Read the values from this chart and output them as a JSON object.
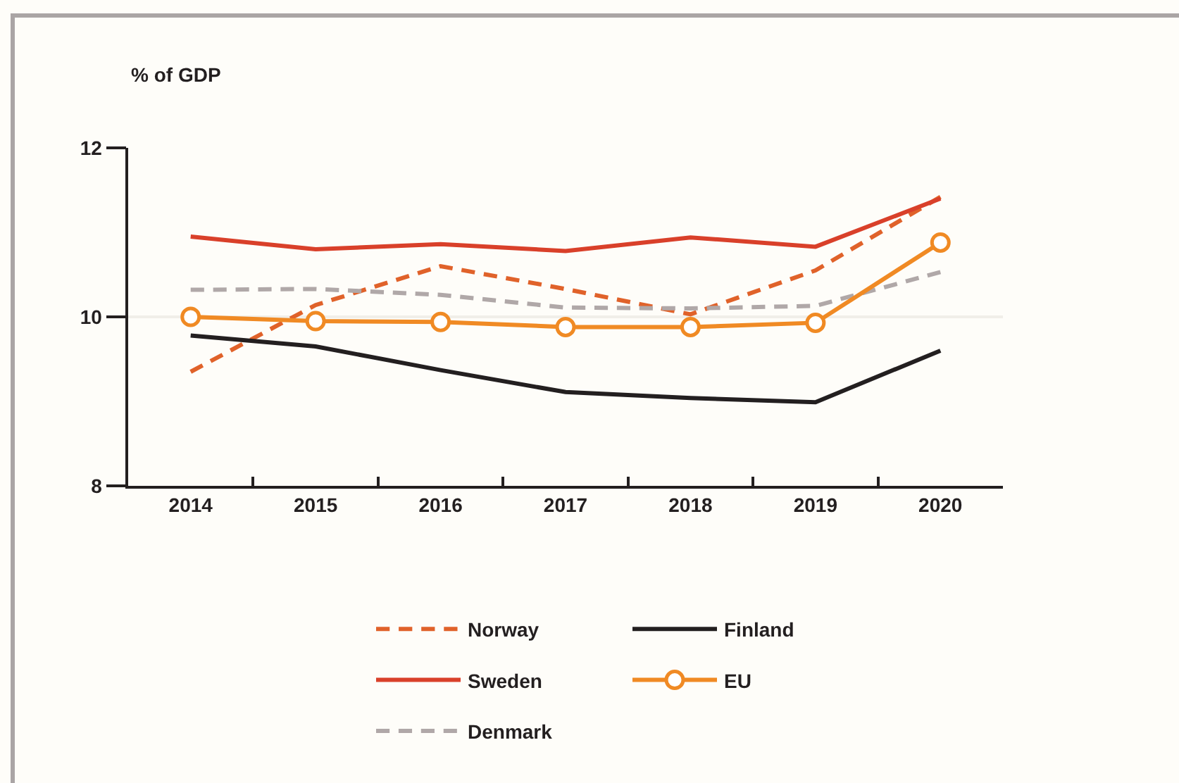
{
  "chart_data": {
    "type": "line",
    "ylabel": "% of GDP",
    "categories": [
      "2014",
      "2015",
      "2016",
      "2017",
      "2018",
      "2019",
      "2020"
    ],
    "series": [
      {
        "name": "Norway",
        "color": "#e0622a",
        "line_style": "dashed",
        "marker": "none",
        "values": [
          9.35,
          10.14,
          10.6,
          10.33,
          10.03,
          10.55,
          11.42
        ]
      },
      {
        "name": "Sweden",
        "color": "#d9402a",
        "line_style": "solid",
        "marker": "none",
        "values": [
          10.95,
          10.8,
          10.86,
          10.78,
          10.94,
          10.83,
          11.4
        ]
      },
      {
        "name": "Denmark",
        "color": "#b0a8a8",
        "line_style": "dashed",
        "marker": "none",
        "values": [
          10.32,
          10.33,
          10.26,
          10.11,
          10.1,
          10.13,
          10.53
        ]
      },
      {
        "name": "Finland",
        "color": "#231f20",
        "line_style": "solid",
        "marker": "none",
        "values": [
          9.78,
          9.65,
          9.37,
          9.11,
          9.04,
          8.99,
          9.6
        ]
      },
      {
        "name": "EU",
        "color": "#f08a24",
        "line_style": "solid",
        "marker": "circle",
        "values": [
          10.0,
          9.95,
          9.94,
          9.88,
          9.88,
          9.93,
          10.88
        ]
      }
    ],
    "ylim": [
      8,
      12
    ],
    "yticks": [
      8,
      10,
      12
    ],
    "grid": "y",
    "legend": "bottom"
  }
}
